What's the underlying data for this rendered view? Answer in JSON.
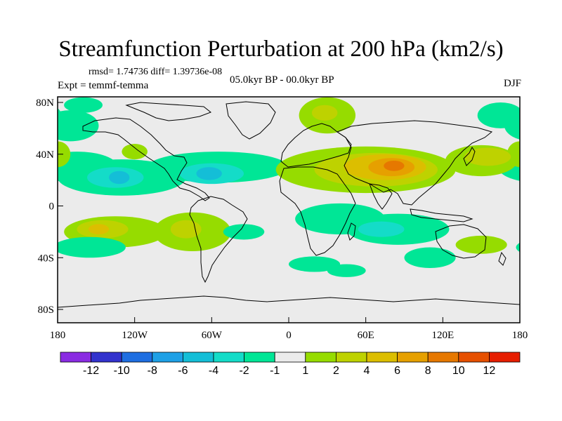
{
  "title": "Streamfunction Perturbation at 200 hPa (km2/s)",
  "stats_line": "rmsd= 1.74736 diff= 1.39736e-08",
  "experiment": "Expt = temmf-temma",
  "period": "05.0kyr BP - 00.0kyr BP",
  "season": "DJF",
  "axes": {
    "x_ticks": [
      "180",
      "120W",
      "60W",
      "0",
      "60E",
      "120E",
      "180"
    ],
    "y_ticks": [
      "80N",
      "40N",
      "0",
      "40S",
      "80S"
    ]
  },
  "colorbar": {
    "colors": [
      "#8a2be2",
      "#3232cd",
      "#1e6ee1",
      "#1ea0e6",
      "#14bed7",
      "#14dcc8",
      "#00e696",
      "#ebebeb",
      "#96dc00",
      "#bed200",
      "#dcbe00",
      "#e6a000",
      "#e67800",
      "#e65000",
      "#e61e00"
    ],
    "labels": [
      "-12",
      "-10",
      "-8",
      "-6",
      "-4",
      "-2",
      "-1",
      "1",
      "2",
      "4",
      "6",
      "8",
      "10",
      "12"
    ]
  },
  "map_fields": [
    {
      "name": "n-pacific-high-lat",
      "level": "-1",
      "color": "#00e696",
      "lon": -170,
      "lat": 62,
      "rlon": 22,
      "rlat": 12
    },
    {
      "name": "n-pacific-mid",
      "level": "-1",
      "color": "#00e696",
      "lon": -165,
      "lat": 30,
      "rlon": 32,
      "rlat": 12
    },
    {
      "name": "n-pacific-west",
      "level": "1",
      "color": "#96dc00",
      "lon": 180,
      "lat": 40,
      "rlon": 10,
      "rlat": 10
    },
    {
      "name": "subtropical-band-pacific",
      "level": "-1",
      "color": "#00e696",
      "lon": -130,
      "lat": 22,
      "rlon": 50,
      "rlat": 14
    },
    {
      "name": "caribbean-atlantic-band",
      "level": "-1",
      "color": "#00e696",
      "lon": -55,
      "lat": 30,
      "rlon": 55,
      "rlat": 12
    },
    {
      "name": "central-pacific-low",
      "level": "-2",
      "color": "#14dcc8",
      "lon": -135,
      "lat": 22,
      "rlon": 22,
      "rlat": 8
    },
    {
      "name": "central-pacific-low-core",
      "level": "-4",
      "color": "#14bed7",
      "lon": -132,
      "lat": 22,
      "rlon": 8,
      "rlat": 5
    },
    {
      "name": "north-atlantic-low",
      "level": "-2",
      "color": "#14dcc8",
      "lon": -60,
      "lat": 25,
      "rlon": 25,
      "rlat": 8
    },
    {
      "name": "north-atlantic-low-core",
      "level": "-4",
      "color": "#14bed7",
      "lon": -62,
      "lat": 25,
      "rlon": 10,
      "rlat": 5
    },
    {
      "name": "arctic-europe-high",
      "level": "1",
      "color": "#96dc00",
      "lon": 30,
      "lat": 70,
      "rlon": 22,
      "rlat": 14
    },
    {
      "name": "arctic-europe-high-2",
      "level": "2",
      "color": "#bed200",
      "lon": 28,
      "lat": 72,
      "rlon": 10,
      "rlat": 6
    },
    {
      "name": "north-atlantic-west",
      "level": "-1",
      "color": "#00e696",
      "lon": -160,
      "lat": 78,
      "rlon": 15,
      "rlat": 6
    },
    {
      "name": "asia-high-outer",
      "level": "1",
      "color": "#96dc00",
      "lon": 60,
      "lat": 28,
      "rlon": 70,
      "rlat": 18
    },
    {
      "name": "asia-high-2",
      "level": "2",
      "color": "#bed200",
      "lon": 68,
      "lat": 28,
      "rlon": 48,
      "rlat": 13
    },
    {
      "name": "asia-high-4",
      "level": "4",
      "color": "#dcbe00",
      "lon": 75,
      "lat": 30,
      "rlon": 32,
      "rlat": 10
    },
    {
      "name": "asia-high-6",
      "level": "6",
      "color": "#e6a000",
      "lon": 80,
      "lat": 30,
      "rlon": 18,
      "rlat": 7
    },
    {
      "name": "asia-high-8",
      "level": "8",
      "color": "#e67800",
      "lon": 82,
      "lat": 31,
      "rlon": 8,
      "rlat": 4
    },
    {
      "name": "africa-indian-low",
      "level": "-1",
      "color": "#00e696",
      "lon": 40,
      "lat": -10,
      "rlon": 35,
      "rlat": 12
    },
    {
      "name": "southern-indian-low",
      "level": "-1",
      "color": "#00e696",
      "lon": 85,
      "lat": -18,
      "rlon": 40,
      "rlat": 12
    },
    {
      "name": "southern-indian-low-2",
      "level": "-2",
      "color": "#14dcc8",
      "lon": 72,
      "lat": -18,
      "rlon": 18,
      "rlat": 6
    },
    {
      "name": "west-pacific-high",
      "level": "1",
      "color": "#96dc00",
      "lon": 150,
      "lat": 35,
      "rlon": 28,
      "rlat": 12
    },
    {
      "name": "west-pacific-high-2",
      "level": "2",
      "color": "#bed200",
      "lon": 155,
      "lat": 38,
      "rlon": 18,
      "rlat": 7
    },
    {
      "name": "arctic-east",
      "level": "-1",
      "color": "#00e696",
      "lon": 165,
      "lat": 70,
      "rlon": 18,
      "rlat": 10
    },
    {
      "name": "s-pacific-high",
      "level": "1",
      "color": "#96dc00",
      "lon": -135,
      "lat": -20,
      "rlon": 40,
      "rlat": 12
    },
    {
      "name": "s-pacific-high-2",
      "level": "2",
      "color": "#bed200",
      "lon": -145,
      "lat": -18,
      "rlon": 20,
      "rlat": 7
    },
    {
      "name": "s-pacific-high-4",
      "level": "4",
      "color": "#dcbe00",
      "lon": -148,
      "lat": -18,
      "rlon": 8,
      "rlat": 4
    },
    {
      "name": "s-america-high",
      "level": "1",
      "color": "#96dc00",
      "lon": -75,
      "lat": -20,
      "rlon": 30,
      "rlat": 15
    },
    {
      "name": "s-america-high-2",
      "level": "2",
      "color": "#bed200",
      "lon": -80,
      "lat": -18,
      "rlon": 12,
      "rlat": 7
    },
    {
      "name": "s-pacific-low-south",
      "level": "-1",
      "color": "#00e696",
      "lon": -155,
      "lat": -32,
      "rlon": 28,
      "rlat": 8
    },
    {
      "name": "south-atlantic-low",
      "level": "-1",
      "color": "#00e696",
      "lon": -35,
      "lat": -20,
      "rlon": 16,
      "rlat": 6
    },
    {
      "name": "s-indian-south",
      "level": "-1",
      "color": "#00e696",
      "lon": 20,
      "lat": -45,
      "rlon": 20,
      "rlat": 6
    },
    {
      "name": "s-indian-south-2",
      "level": "-1",
      "color": "#00e696",
      "lon": 45,
      "lat": -50,
      "rlon": 15,
      "rlat": 5
    },
    {
      "name": "s-pacific-south-east",
      "level": "1",
      "color": "#96dc00",
      "lon": 150,
      "lat": -30,
      "rlon": 20,
      "rlat": 7
    },
    {
      "name": "aus-low",
      "level": "-1",
      "color": "#00e696",
      "lon": 110,
      "lat": -40,
      "rlon": 20,
      "rlat": 8
    },
    {
      "name": "n-pacific-east-high",
      "level": "1",
      "color": "#96dc00",
      "lon": -120,
      "lat": 42,
      "rlon": 10,
      "rlat": 6
    }
  ]
}
